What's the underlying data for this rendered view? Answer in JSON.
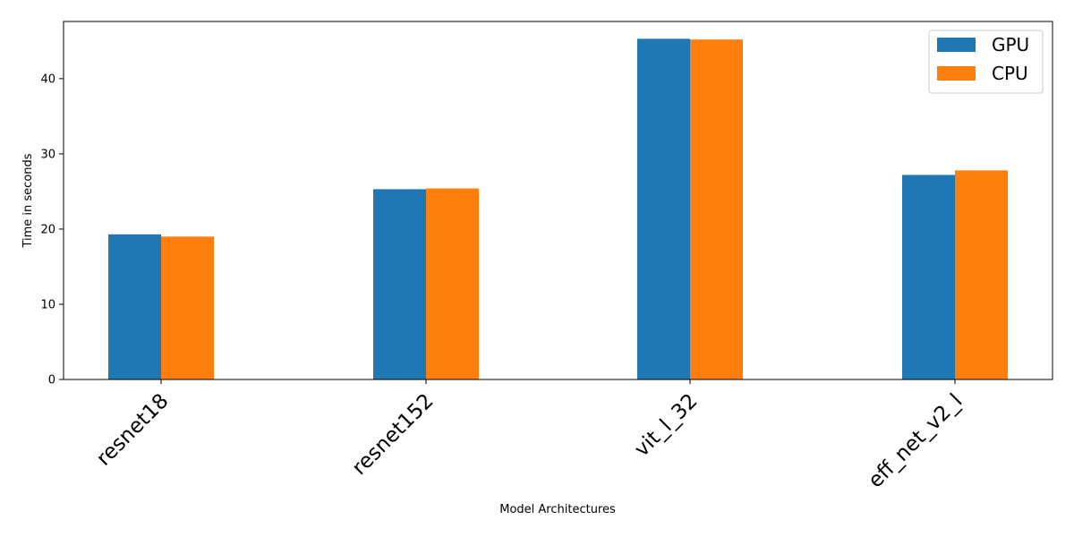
{
  "chart_data": {
    "type": "bar",
    "title": "",
    "xlabel": "Model Architectures",
    "ylabel": "Time in seconds",
    "categories": [
      "resnet18",
      "resnet152",
      "vit_l_32",
      "eff_net_v2_l"
    ],
    "series": [
      {
        "name": "GPU",
        "color": "#1f77b4",
        "values": [
          19.3,
          25.3,
          45.3,
          27.2
        ]
      },
      {
        "name": "CPU",
        "color": "#ff7f0e",
        "values": [
          19.0,
          25.4,
          45.2,
          27.8
        ]
      }
    ],
    "ylim": [
      0,
      47.6
    ],
    "yticks": [
      0,
      10,
      20,
      30,
      40
    ],
    "grid": false,
    "legend_position": "top-right"
  }
}
